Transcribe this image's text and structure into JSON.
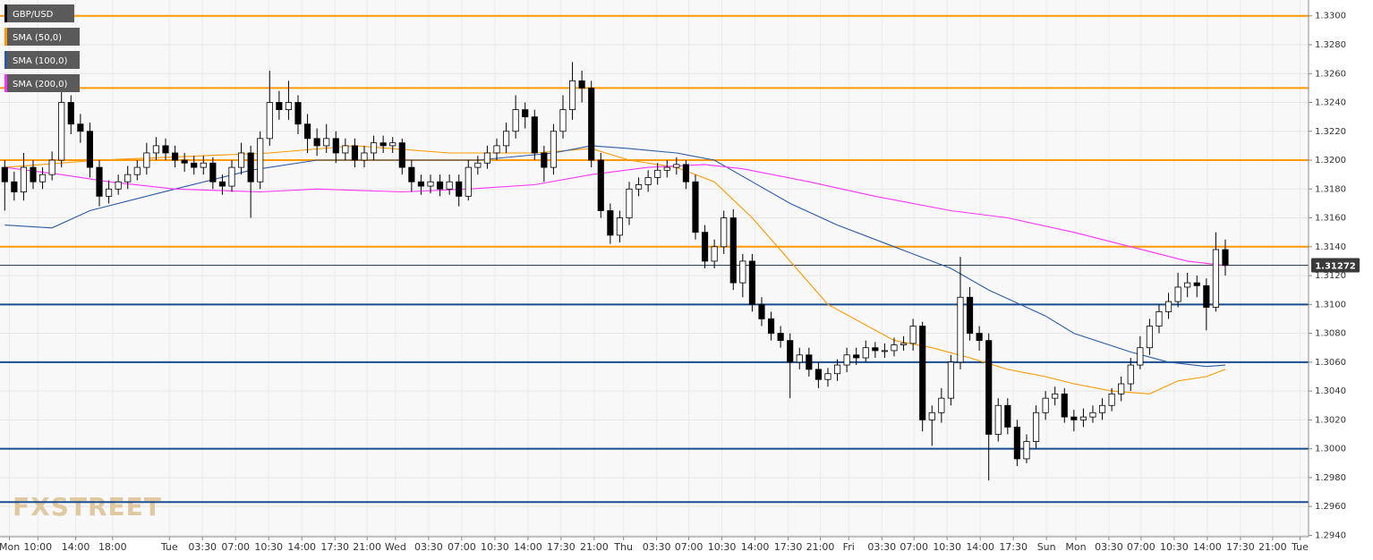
{
  "chart_data": {
    "type": "candlestick",
    "name": "GBP/USD",
    "color": "#000000",
    "up_color": "#ffffff",
    "down_color": "#000000",
    "x": [
      0,
      1,
      2,
      3,
      4,
      5,
      6,
      7,
      8,
      9,
      10,
      11,
      12,
      13,
      14,
      15,
      16,
      17,
      18,
      19,
      20,
      21,
      22,
      23,
      24,
      25,
      26,
      27,
      28,
      29,
      30,
      31,
      32,
      33,
      34,
      35,
      36,
      37,
      38,
      39,
      40,
      41,
      42,
      43,
      44,
      45,
      46,
      47,
      48,
      49,
      50,
      51,
      52,
      53,
      54,
      55,
      56,
      57,
      58,
      59,
      60,
      61,
      62,
      63,
      64,
      65,
      66,
      67,
      68,
      69,
      70,
      71,
      72,
      73,
      74,
      75,
      76,
      77,
      78,
      79,
      80,
      81,
      82,
      83,
      84,
      85,
      86,
      87,
      88,
      89,
      90,
      91,
      92,
      93,
      94,
      95,
      96,
      97,
      98,
      99,
      100,
      101,
      102,
      103,
      104,
      105,
      106,
      107,
      108,
      109,
      110,
      111,
      112,
      113,
      114,
      115,
      116,
      117,
      118,
      119,
      120,
      121,
      122,
      123,
      124,
      125,
      126,
      127,
      128,
      129
    ],
    "open": [
      1.3195,
      1.3185,
      1.3178,
      1.3195,
      1.3185,
      1.319,
      1.32,
      1.324,
      1.3225,
      1.322,
      1.3195,
      1.3175,
      1.318,
      1.3185,
      1.319,
      1.3195,
      1.3205,
      1.321,
      1.3205,
      1.32,
      1.3198,
      1.3195,
      1.3198,
      1.3185,
      1.3182,
      1.3195,
      1.3205,
      1.3185,
      1.3215,
      1.324,
      1.3235,
      1.324,
      1.3225,
      1.3215,
      1.321,
      1.3215,
      1.3205,
      1.321,
      1.32,
      1.3205,
      1.3212,
      1.321,
      1.3212,
      1.3195,
      1.3185,
      1.3182,
      1.3185,
      1.318,
      1.3185,
      1.3175,
      1.3195,
      1.3198,
      1.3205,
      1.321,
      1.322,
      1.3235,
      1.323,
      1.3205,
      1.3195,
      1.322,
      1.3235,
      1.3255,
      1.325,
      1.32,
      1.3165,
      1.3148,
      1.316,
      1.318,
      1.3183,
      1.3188,
      1.3193,
      1.3195,
      1.3197,
      1.3185,
      1.315,
      1.313,
      1.314,
      1.316,
      1.3115,
      1.313,
      1.31,
      1.309,
      1.308,
      1.3075,
      1.306,
      1.3065,
      1.3055,
      1.3048,
      1.3052,
      1.3058,
      1.3065,
      1.3063,
      1.307,
      1.3068,
      1.3068,
      1.3072,
      1.3073,
      1.3085,
      1.302,
      1.3025,
      1.3035,
      1.306,
      1.3105,
      1.308,
      1.3075,
      1.301,
      1.303,
      1.3015,
      1.2993,
      1.3005,
      1.3025,
      1.3035,
      1.3038,
      1.3022,
      1.302,
      1.3022,
      1.3025,
      1.303,
      1.3038,
      1.3045,
      1.3058,
      1.307,
      1.3085,
      1.3095,
      1.3102,
      1.3112,
      1.3115,
      1.3113,
      1.3098,
      1.3138
    ],
    "high": [
      1.32,
      1.3192,
      1.3205,
      1.32,
      1.3195,
      1.3206,
      1.325,
      1.3245,
      1.3232,
      1.3226,
      1.32,
      1.3186,
      1.319,
      1.3196,
      1.32,
      1.3212,
      1.3216,
      1.3215,
      1.321,
      1.3205,
      1.3203,
      1.3203,
      1.3202,
      1.319,
      1.32,
      1.3212,
      1.321,
      1.322,
      1.3262,
      1.3248,
      1.3255,
      1.3245,
      1.3232,
      1.3222,
      1.3225,
      1.322,
      1.3215,
      1.3215,
      1.321,
      1.3217,
      1.3217,
      1.3216,
      1.3215,
      1.32,
      1.319,
      1.319,
      1.319,
      1.319,
      1.319,
      1.32,
      1.3203,
      1.321,
      1.3215,
      1.3226,
      1.3245,
      1.324,
      1.3235,
      1.321,
      1.3225,
      1.3245,
      1.3268,
      1.3262,
      1.3255,
      1.3205,
      1.317,
      1.3165,
      1.3185,
      1.3188,
      1.3193,
      1.3198,
      1.32,
      1.3202,
      1.32,
      1.319,
      1.3155,
      1.3145,
      1.3165,
      1.3166,
      1.3135,
      1.3135,
      1.3105,
      1.3095,
      1.3085,
      1.308,
      1.307,
      1.307,
      1.306,
      1.3056,
      1.3062,
      1.307,
      1.307,
      1.3075,
      1.3074,
      1.3073,
      1.3077,
      1.3078,
      1.309,
      1.3088,
      1.303,
      1.3042,
      1.3065,
      1.3133,
      1.3112,
      1.3085,
      1.308,
      1.3035,
      1.3035,
      1.302,
      1.301,
      1.303,
      1.304,
      1.3043,
      1.3042,
      1.3027,
      1.3028,
      1.303,
      1.3035,
      1.3042,
      1.305,
      1.3063,
      1.3078,
      1.309,
      1.31,
      1.3108,
      1.3122,
      1.3122,
      1.312,
      1.3118,
      1.315,
      1.3145
    ],
    "low": [
      1.3165,
      1.3172,
      1.3172,
      1.318,
      1.318,
      1.3186,
      1.3195,
      1.3218,
      1.3212,
      1.3188,
      1.3168,
      1.317,
      1.3176,
      1.318,
      1.3186,
      1.319,
      1.32,
      1.32,
      1.3195,
      1.3192,
      1.319,
      1.319,
      1.318,
      1.3176,
      1.3178,
      1.319,
      1.316,
      1.318,
      1.321,
      1.3228,
      1.3228,
      1.3218,
      1.3205,
      1.3203,
      1.3205,
      1.3198,
      1.32,
      1.3195,
      1.3195,
      1.32,
      1.3205,
      1.3205,
      1.319,
      1.3178,
      1.3176,
      1.3177,
      1.3175,
      1.3176,
      1.3168,
      1.3172,
      1.319,
      1.3194,
      1.32,
      1.3205,
      1.3215,
      1.3222,
      1.32,
      1.3185,
      1.319,
      1.3215,
      1.3228,
      1.324,
      1.3195,
      1.316,
      1.3142,
      1.3143,
      1.3155,
      1.3175,
      1.3178,
      1.3183,
      1.3188,
      1.319,
      1.318,
      1.3145,
      1.3125,
      1.3125,
      1.3135,
      1.311,
      1.3105,
      1.3095,
      1.3085,
      1.3075,
      1.307,
      1.3035,
      1.3055,
      1.305,
      1.3042,
      1.3043,
      1.3047,
      1.3053,
      1.3058,
      1.306,
      1.3063,
      1.3063,
      1.3064,
      1.3068,
      1.3068,
      1.3012,
      1.3002,
      1.3018,
      1.303,
      1.3055,
      1.3075,
      1.3068,
      1.2978,
      1.3005,
      1.301,
      1.2988,
      1.299,
      1.3,
      1.302,
      1.303,
      1.3018,
      1.3012,
      1.3015,
      1.3018,
      1.302,
      1.3026,
      1.3033,
      1.304,
      1.3055,
      1.3065,
      1.308,
      1.309,
      1.3098,
      1.3105,
      1.3105,
      1.3082,
      1.3095,
      1.312
    ],
    "close": [
      1.3185,
      1.3178,
      1.3195,
      1.3185,
      1.319,
      1.32,
      1.324,
      1.3225,
      1.322,
      1.3195,
      1.3175,
      1.318,
      1.3185,
      1.319,
      1.3195,
      1.3205,
      1.321,
      1.3205,
      1.32,
      1.3198,
      1.3195,
      1.3198,
      1.3185,
      1.3182,
      1.3195,
      1.3205,
      1.3185,
      1.3215,
      1.324,
      1.3235,
      1.324,
      1.3225,
      1.3215,
      1.321,
      1.3215,
      1.3205,
      1.321,
      1.32,
      1.3205,
      1.3212,
      1.321,
      1.3212,
      1.3195,
      1.3185,
      1.3182,
      1.3185,
      1.318,
      1.3185,
      1.3175,
      1.3195,
      1.3198,
      1.3205,
      1.321,
      1.322,
      1.3235,
      1.323,
      1.3205,
      1.3195,
      1.322,
      1.3235,
      1.3255,
      1.325,
      1.32,
      1.3165,
      1.3148,
      1.316,
      1.318,
      1.3183,
      1.3188,
      1.3193,
      1.3195,
      1.3197,
      1.3185,
      1.315,
      1.313,
      1.314,
      1.316,
      1.3115,
      1.313,
      1.31,
      1.309,
      1.308,
      1.3075,
      1.306,
      1.3065,
      1.3055,
      1.3048,
      1.3052,
      1.3058,
      1.3065,
      1.3063,
      1.307,
      1.3068,
      1.3068,
      1.3072,
      1.3073,
      1.3085,
      1.302,
      1.3025,
      1.3035,
      1.306,
      1.3105,
      1.308,
      1.3075,
      1.301,
      1.303,
      1.3015,
      1.2993,
      1.3005,
      1.3025,
      1.3035,
      1.3038,
      1.3022,
      1.302,
      1.3022,
      1.3025,
      1.303,
      1.3038,
      1.3045,
      1.3058,
      1.307,
      1.3085,
      1.3095,
      1.3102,
      1.3112,
      1.3115,
      1.3113,
      1.3098,
      1.3138,
      1.3127
    ],
    "series": [
      {
        "name": "SMA (50,0)",
        "color": "#ff9900",
        "x": [
          0,
          10,
          28,
          37,
          47,
          56,
          62,
          66,
          71,
          75,
          79,
          83,
          87,
          94,
          98,
          102,
          106,
          110,
          113,
          117,
          121,
          124,
          127,
          129
        ],
        "values": [
          1.3195,
          1.32,
          1.3205,
          1.321,
          1.3205,
          1.3205,
          1.3208,
          1.32,
          1.3195,
          1.3185,
          1.316,
          1.313,
          1.31,
          1.3075,
          1.307,
          1.3063,
          1.3055,
          1.305,
          1.3045,
          1.304,
          1.3038,
          1.3047,
          1.305,
          1.3055
        ]
      },
      {
        "name": "SMA (100,0)",
        "color": "#2a5ba8",
        "x": [
          0,
          5,
          9,
          18,
          26,
          33,
          42,
          50,
          58,
          62,
          66,
          71,
          75,
          79,
          83,
          88,
          94,
          100,
          104,
          110,
          113,
          119,
          123,
          127,
          129
        ],
        "values": [
          1.3155,
          1.3153,
          1.3165,
          1.318,
          1.3193,
          1.32,
          1.32,
          1.32,
          1.3205,
          1.321,
          1.3208,
          1.3205,
          1.32,
          1.3185,
          1.317,
          1.3155,
          1.314,
          1.3125,
          1.311,
          1.3092,
          1.308,
          1.3067,
          1.306,
          1.3057,
          1.3058
        ]
      },
      {
        "name": "SMA (200,0)",
        "color": "#ff33ff",
        "x": [
          0,
          6,
          11,
          18,
          27,
          33,
          42,
          49,
          56,
          62,
          68,
          74,
          78,
          85,
          92,
          100,
          106,
          113,
          119,
          125,
          129
        ],
        "values": [
          1.3195,
          1.319,
          1.3185,
          1.318,
          1.3178,
          1.318,
          1.3178,
          1.318,
          1.3183,
          1.319,
          1.3195,
          1.3197,
          1.3194,
          1.3185,
          1.3175,
          1.3165,
          1.316,
          1.315,
          1.314,
          1.313,
          1.3127
        ]
      }
    ],
    "levels": [
      {
        "value": 1.33,
        "color": "#ff9900"
      },
      {
        "value": 1.325,
        "color": "#ff9900"
      },
      {
        "value": 1.32,
        "color": "#ff9900"
      },
      {
        "value": 1.314,
        "color": "#ff9900"
      },
      {
        "value": 1.31,
        "color": "#1a4d8f"
      },
      {
        "value": 1.306,
        "color": "#1a4d8f"
      },
      {
        "value": 1.3,
        "color": "#1a4d8f"
      },
      {
        "value": 1.2963,
        "color": "#1a4d8f"
      }
    ],
    "last_price": {
      "value": 1.31272,
      "label": "1.31272"
    },
    "watermark": "FXSTREET",
    "grid": true,
    "legend": "top-left",
    "xlim": [
      -0.5,
      137.8
    ],
    "xticks": [
      {
        "value": 0.5,
        "label": "Mon"
      },
      {
        "value": 3.5,
        "label": "10:00"
      },
      {
        "value": 7.5,
        "label": "14:00"
      },
      {
        "value": 11.4,
        "label": "18:00"
      },
      {
        "value": 17.4,
        "label": "Tue"
      },
      {
        "value": 20.9,
        "label": "03:30"
      },
      {
        "value": 24.4,
        "label": "07:00"
      },
      {
        "value": 27.9,
        "label": "10:30"
      },
      {
        "value": 31.4,
        "label": "14:00"
      },
      {
        "value": 34.9,
        "label": "17:30"
      },
      {
        "value": 38.3,
        "label": "21:00"
      },
      {
        "value": 41.3,
        "label": "Wed"
      },
      {
        "value": 44.8,
        "label": "03:30"
      },
      {
        "value": 48.3,
        "label": "07:00"
      },
      {
        "value": 51.8,
        "label": "10:30"
      },
      {
        "value": 55.3,
        "label": "14:00"
      },
      {
        "value": 58.8,
        "label": "17:30"
      },
      {
        "value": 62.3,
        "label": "21:00"
      },
      {
        "value": 65.4,
        "label": "Thu"
      },
      {
        "value": 68.9,
        "label": "03:30"
      },
      {
        "value": 72.3,
        "label": "07:00"
      },
      {
        "value": 75.8,
        "label": "10:30"
      },
      {
        "value": 79.3,
        "label": "14:00"
      },
      {
        "value": 82.8,
        "label": "17:30"
      },
      {
        "value": 86.2,
        "label": "21:00"
      },
      {
        "value": 89.2,
        "label": "Fri"
      },
      {
        "value": 92.7,
        "label": "03:30"
      },
      {
        "value": 96.1,
        "label": "07:00"
      },
      {
        "value": 99.6,
        "label": "10:30"
      },
      {
        "value": 103.1,
        "label": "14:00"
      },
      {
        "value": 106.6,
        "label": "17:30"
      },
      {
        "value": 110.1,
        "label": "Sun"
      },
      {
        "value": 113.2,
        "label": "Mon"
      },
      {
        "value": 116.7,
        "label": "03:30"
      },
      {
        "value": 120.1,
        "label": "07:00"
      },
      {
        "value": 123.6,
        "label": "10:30"
      },
      {
        "value": 127.1,
        "label": "14:00"
      },
      {
        "value": 130.6,
        "label": "17:30"
      },
      {
        "value": 134.0,
        "label": "21:00"
      },
      {
        "value": 136.9,
        "label": "Tue"
      }
    ],
    "ylim": [
      1.2939,
      1.3311
    ],
    "yticks": [
      {
        "value": 1.294,
        "label": "1.2940"
      },
      {
        "value": 1.296,
        "label": "1.2960"
      },
      {
        "value": 1.298,
        "label": "1.2980"
      },
      {
        "value": 1.3,
        "label": "1.3000"
      },
      {
        "value": 1.302,
        "label": "1.3020"
      },
      {
        "value": 1.304,
        "label": "1.3040"
      },
      {
        "value": 1.306,
        "label": "1.3060"
      },
      {
        "value": 1.308,
        "label": "1.3080"
      },
      {
        "value": 1.31,
        "label": "1.3100"
      },
      {
        "value": 1.312,
        "label": "1.3120"
      },
      {
        "value": 1.314,
        "label": "1.3140"
      },
      {
        "value": 1.316,
        "label": "1.3160"
      },
      {
        "value": 1.318,
        "label": "1.3180"
      },
      {
        "value": 1.32,
        "label": "1.3200"
      },
      {
        "value": 1.322,
        "label": "1.3220"
      },
      {
        "value": 1.324,
        "label": "1.3240"
      },
      {
        "value": 1.326,
        "label": "1.3260"
      },
      {
        "value": 1.328,
        "label": "1.3280"
      },
      {
        "value": 1.33,
        "label": "1.3300"
      }
    ]
  }
}
